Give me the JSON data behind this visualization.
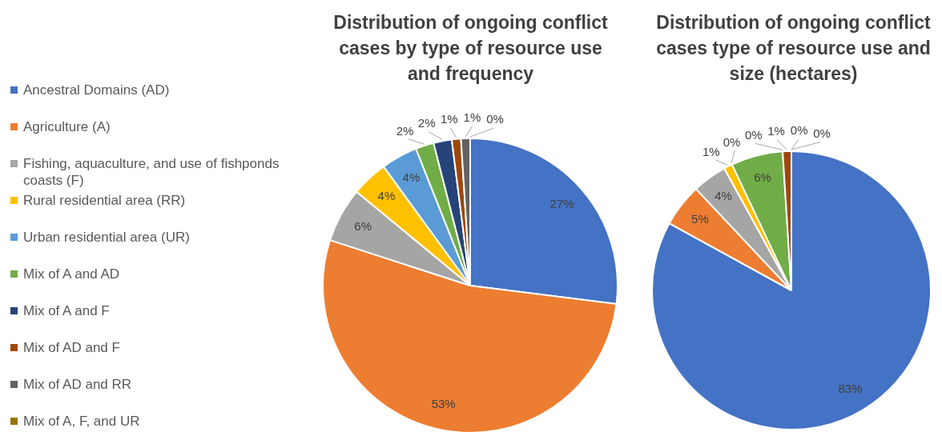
{
  "chart_data": [
    {
      "type": "pie",
      "title": "Distribution of ongoing conflict cases by type of resource use and frequency",
      "categories": [
        "Ancestral Domains (AD)",
        "Agriculture (A)",
        "Fishing, aquaculture, and use of fishponds coasts (F)",
        "Rural residential area (RR)",
        "Urban residential area (UR)",
        "Mix of A and AD",
        "Mix of A and F",
        "Mix of AD and F",
        "Mix of AD and RR",
        "Mix of A, F, and UR"
      ],
      "values": [
        27,
        53,
        6,
        4,
        4,
        2,
        2,
        1,
        1,
        0
      ],
      "colors": [
        "#4472c4",
        "#ed7d31",
        "#a5a5a5",
        "#ffc000",
        "#5b9bd5",
        "#70ad47",
        "#264478",
        "#9e480e",
        "#636363",
        "#997300"
      ],
      "value_labels": [
        "27%",
        "53%",
        "6%",
        "4%",
        "4%",
        "2%",
        "2%",
        "1%",
        "1%",
        "0%"
      ],
      "legend": "left"
    },
    {
      "type": "pie",
      "title": "Distribution of ongoing conflict cases type of resource use and size (hectares)",
      "categories": [
        null,
        null,
        null,
        null,
        null,
        null,
        null,
        null,
        null,
        null
      ],
      "values": [
        83,
        5,
        4,
        1,
        0,
        6,
        0,
        1,
        0,
        0
      ],
      "colors": [
        "#4472c4",
        "#ed7d31",
        "#a5a5a5",
        "#ffc000",
        "#5b9bd5",
        "#70ad47",
        "#264478",
        "#9e480e",
        "#636363",
        "#997300"
      ],
      "value_labels": [
        "83%",
        "5%",
        "4%",
        "1%",
        "0%",
        "6%",
        "0%",
        "1%",
        "0%",
        "0%"
      ]
    }
  ]
}
